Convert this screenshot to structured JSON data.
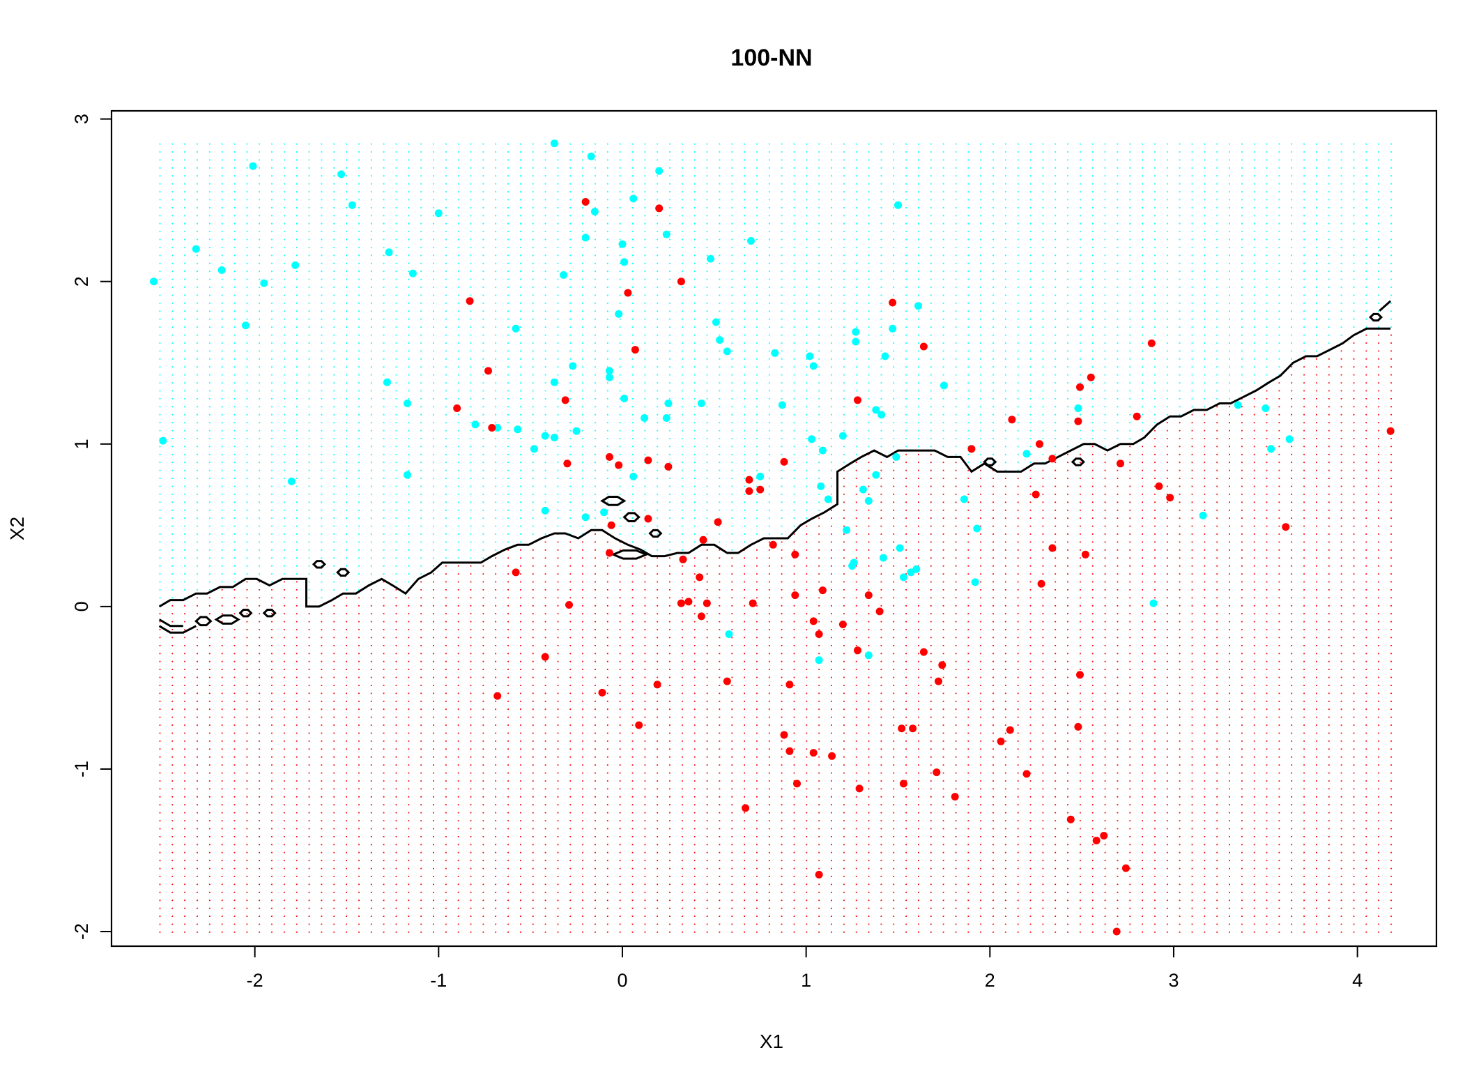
{
  "chart_data": {
    "type": "scatter",
    "title": "100-NN",
    "xlabel": "X1",
    "ylabel": "X2",
    "xlim": [
      -2.78,
      4.43
    ],
    "ylim": [
      -2.09,
      3.05
    ],
    "xticks": [
      -2,
      -1,
      0,
      1,
      2,
      3,
      4
    ],
    "yticks": [
      -2,
      -1,
      0,
      1,
      2,
      3
    ],
    "xtick_labels": [
      "-2",
      "-1",
      "0",
      "1",
      "2",
      "3",
      "4"
    ],
    "ytick_labels": [
      "-2",
      "-1",
      "0",
      "1",
      "2",
      "3"
    ],
    "colors": {
      "class_a": "#00ffff",
      "class_b": "#ff0000",
      "boundary": "#000000",
      "frame": "#000000"
    },
    "grid": {
      "x_from": -2.52,
      "x_to": 4.18,
      "y_from": -2.0,
      "y_to": 2.85,
      "n": 100,
      "marker": "small dots colored by predicted class"
    },
    "decision_boundary": [
      [
        -2.52,
        0.0
      ],
      [
        -2.46,
        0.04
      ],
      [
        -2.39,
        0.04
      ],
      [
        -2.32,
        0.08
      ],
      [
        -2.26,
        0.08
      ],
      [
        -2.19,
        0.12
      ],
      [
        -2.12,
        0.12
      ],
      [
        -2.05,
        0.17
      ],
      [
        -1.99,
        0.17
      ],
      [
        -1.92,
        0.13
      ],
      [
        -1.85,
        0.17
      ],
      [
        -1.79,
        0.17
      ],
      [
        -1.72,
        0.17
      ],
      [
        -1.72,
        0.0
      ],
      [
        -1.65,
        0.0
      ],
      [
        -1.58,
        0.04
      ],
      [
        -1.52,
        0.08
      ],
      [
        -1.45,
        0.08
      ],
      [
        -1.38,
        0.13
      ],
      [
        -1.31,
        0.17
      ],
      [
        -1.25,
        0.13
      ],
      [
        -1.18,
        0.08
      ],
      [
        -1.11,
        0.17
      ],
      [
        -1.04,
        0.21
      ],
      [
        -0.98,
        0.27
      ],
      [
        -0.91,
        0.27
      ],
      [
        -0.84,
        0.27
      ],
      [
        -0.77,
        0.27
      ],
      [
        -0.71,
        0.31
      ],
      [
        -0.64,
        0.35
      ],
      [
        -0.57,
        0.38
      ],
      [
        -0.51,
        0.38
      ],
      [
        -0.44,
        0.42
      ],
      [
        -0.37,
        0.45
      ],
      [
        -0.31,
        0.45
      ],
      [
        -0.24,
        0.42
      ],
      [
        -0.17,
        0.47
      ],
      [
        -0.11,
        0.47
      ],
      [
        -0.04,
        0.42
      ],
      [
        0.03,
        0.38
      ],
      [
        0.1,
        0.35
      ],
      [
        0.16,
        0.31
      ],
      [
        0.23,
        0.31
      ],
      [
        0.3,
        0.33
      ],
      [
        0.36,
        0.33
      ],
      [
        0.43,
        0.38
      ],
      [
        0.5,
        0.38
      ],
      [
        0.57,
        0.33
      ],
      [
        0.63,
        0.33
      ],
      [
        0.7,
        0.38
      ],
      [
        0.77,
        0.42
      ],
      [
        0.83,
        0.42
      ],
      [
        0.9,
        0.42
      ],
      [
        0.97,
        0.5
      ],
      [
        1.03,
        0.54
      ],
      [
        1.1,
        0.58
      ],
      [
        1.17,
        0.63
      ],
      [
        1.17,
        0.83
      ],
      [
        1.24,
        0.88
      ],
      [
        1.3,
        0.92
      ],
      [
        1.37,
        0.96
      ],
      [
        1.44,
        0.92
      ],
      [
        1.5,
        0.96
      ],
      [
        1.57,
        0.96
      ],
      [
        1.64,
        0.96
      ],
      [
        1.7,
        0.96
      ],
      [
        1.77,
        0.92
      ],
      [
        1.84,
        0.92
      ],
      [
        1.9,
        0.83
      ],
      [
        1.97,
        0.88
      ],
      [
        2.04,
        0.83
      ],
      [
        2.1,
        0.83
      ],
      [
        2.17,
        0.83
      ],
      [
        2.24,
        0.88
      ],
      [
        2.3,
        0.88
      ],
      [
        2.37,
        0.92
      ],
      [
        2.44,
        0.96
      ],
      [
        2.51,
        1.0
      ],
      [
        2.57,
        1.0
      ],
      [
        2.64,
        0.96
      ],
      [
        2.71,
        1.0
      ],
      [
        2.78,
        1.0
      ],
      [
        2.84,
        1.04
      ],
      [
        2.91,
        1.12
      ],
      [
        2.98,
        1.17
      ],
      [
        3.04,
        1.17
      ],
      [
        3.11,
        1.21
      ],
      [
        3.18,
        1.21
      ],
      [
        3.25,
        1.25
      ],
      [
        3.31,
        1.25
      ],
      [
        3.38,
        1.29
      ],
      [
        3.45,
        1.33
      ],
      [
        3.52,
        1.38
      ],
      [
        3.58,
        1.42
      ],
      [
        3.65,
        1.5
      ],
      [
        3.72,
        1.54
      ],
      [
        3.78,
        1.54
      ],
      [
        3.85,
        1.58
      ],
      [
        3.92,
        1.62
      ],
      [
        3.98,
        1.67
      ],
      [
        4.05,
        1.71
      ],
      [
        4.12,
        1.71
      ],
      [
        4.18,
        1.71
      ]
    ],
    "boundary_islands": [
      {
        "cx": -2.28,
        "cy": -0.09,
        "rx": 0.04,
        "ry": 0.025
      },
      {
        "cx": -2.15,
        "cy": -0.08,
        "rx": 0.06,
        "ry": 0.025
      },
      {
        "cx": -2.05,
        "cy": -0.04,
        "rx": 0.03,
        "ry": 0.02
      },
      {
        "cx": -1.92,
        "cy": -0.04,
        "rx": 0.03,
        "ry": 0.02
      },
      {
        "cx": -1.65,
        "cy": 0.26,
        "rx": 0.03,
        "ry": 0.02
      },
      {
        "cx": -1.52,
        "cy": 0.21,
        "rx": 0.03,
        "ry": 0.02
      },
      {
        "cx": -0.05,
        "cy": 0.65,
        "rx": 0.06,
        "ry": 0.025
      },
      {
        "cx": 0.05,
        "cy": 0.55,
        "rx": 0.04,
        "ry": 0.025
      },
      {
        "cx": 0.04,
        "cy": 0.32,
        "rx": 0.09,
        "ry": 0.025
      },
      {
        "cx": 0.18,
        "cy": 0.45,
        "rx": 0.03,
        "ry": 0.02
      },
      {
        "cx": 2.0,
        "cy": 0.89,
        "rx": 0.03,
        "ry": 0.02
      },
      {
        "cx": 2.48,
        "cy": 0.89,
        "rx": 0.03,
        "ry": 0.02
      },
      {
        "cx": 4.1,
        "cy": 1.78,
        "rx": 0.03,
        "ry": 0.02
      }
    ],
    "series": [
      {
        "name": "cyan class",
        "color": "#00ffff",
        "points": [
          [
            -2.55,
            2.0
          ],
          [
            -2.5,
            1.02
          ],
          [
            -2.32,
            2.2
          ],
          [
            -2.18,
            2.07
          ],
          [
            -2.05,
            1.73
          ],
          [
            -2.01,
            2.71
          ],
          [
            -1.95,
            1.99
          ],
          [
            -1.78,
            2.1
          ],
          [
            -1.8,
            0.77
          ],
          [
            -1.53,
            2.66
          ],
          [
            -1.47,
            2.47
          ],
          [
            -1.28,
            1.38
          ],
          [
            -1.27,
            2.18
          ],
          [
            -1.17,
            1.25
          ],
          [
            -1.14,
            2.05
          ],
          [
            -1.17,
            0.81
          ],
          [
            -1.0,
            2.42
          ],
          [
            -0.8,
            1.12
          ],
          [
            -0.68,
            1.1
          ],
          [
            -0.58,
            1.71
          ],
          [
            -0.57,
            1.09
          ],
          [
            -0.48,
            0.97
          ],
          [
            -0.42,
            1.05
          ],
          [
            -0.42,
            0.59
          ],
          [
            -0.37,
            2.85
          ],
          [
            -0.37,
            1.38
          ],
          [
            -0.37,
            1.04
          ],
          [
            -0.32,
            2.04
          ],
          [
            -0.27,
            1.48
          ],
          [
            -0.25,
            1.08
          ],
          [
            -0.2,
            2.27
          ],
          [
            -0.17,
            2.77
          ],
          [
            -0.15,
            2.43
          ],
          [
            -0.2,
            0.55
          ],
          [
            -0.1,
            0.58
          ],
          [
            -0.07,
            1.45
          ],
          [
            -0.07,
            1.41
          ],
          [
            -0.02,
            1.8
          ],
          [
            0.0,
            2.23
          ],
          [
            0.01,
            2.12
          ],
          [
            0.01,
            1.28
          ],
          [
            0.06,
            2.51
          ],
          [
            0.06,
            0.8
          ],
          [
            0.12,
            1.16
          ],
          [
            0.2,
            2.68
          ],
          [
            0.24,
            2.29
          ],
          [
            0.24,
            1.16
          ],
          [
            0.25,
            1.25
          ],
          [
            0.48,
            2.14
          ],
          [
            0.43,
            1.25
          ],
          [
            0.51,
            1.75
          ],
          [
            0.53,
            1.64
          ],
          [
            0.57,
            1.57
          ],
          [
            0.58,
            -0.17
          ],
          [
            0.7,
            2.25
          ],
          [
            0.75,
            0.8
          ],
          [
            0.87,
            1.24
          ],
          [
            0.83,
            1.56
          ],
          [
            1.02,
            1.54
          ],
          [
            1.04,
            1.48
          ],
          [
            1.03,
            1.03
          ],
          [
            1.08,
            0.74
          ],
          [
            1.09,
            0.96
          ],
          [
            1.12,
            0.66
          ],
          [
            1.07,
            -0.33
          ],
          [
            1.2,
            1.05
          ],
          [
            1.22,
            0.47
          ],
          [
            1.26,
            0.27
          ],
          [
            1.27,
            1.69
          ],
          [
            1.27,
            1.63
          ],
          [
            1.31,
            0.72
          ],
          [
            1.34,
            0.65
          ],
          [
            1.34,
            -0.3
          ],
          [
            1.38,
            1.21
          ],
          [
            1.38,
            0.81
          ],
          [
            1.41,
            1.18
          ],
          [
            1.42,
            0.3
          ],
          [
            1.43,
            1.54
          ],
          [
            1.47,
            1.71
          ],
          [
            1.49,
            0.92
          ],
          [
            1.5,
            2.47
          ],
          [
            1.51,
            0.36
          ],
          [
            1.53,
            0.18
          ],
          [
            1.57,
            0.21
          ],
          [
            1.6,
            0.23
          ],
          [
            1.61,
            1.85
          ],
          [
            1.75,
            1.36
          ],
          [
            1.86,
            0.66
          ],
          [
            1.92,
            0.15
          ],
          [
            1.93,
            0.48
          ],
          [
            2.2,
            0.94
          ],
          [
            2.48,
            1.22
          ],
          [
            2.89,
            0.02
          ],
          [
            3.16,
            0.56
          ],
          [
            3.5,
            1.22
          ],
          [
            3.53,
            0.97
          ],
          [
            3.63,
            1.03
          ],
          [
            3.35,
            1.24
          ],
          [
            1.25,
            0.25
          ]
        ]
      },
      {
        "name": "red class",
        "color": "#ff0000",
        "points": [
          [
            -0.83,
            1.88
          ],
          [
            -0.9,
            1.22
          ],
          [
            -0.73,
            1.45
          ],
          [
            -0.71,
            1.1
          ],
          [
            -0.68,
            -0.55
          ],
          [
            -0.58,
            0.21
          ],
          [
            -0.42,
            -0.31
          ],
          [
            -0.31,
            1.27
          ],
          [
            -0.3,
            0.88
          ],
          [
            -0.29,
            0.01
          ],
          [
            -0.2,
            2.49
          ],
          [
            -0.11,
            -0.53
          ],
          [
            -0.07,
            0.92
          ],
          [
            -0.07,
            0.33
          ],
          [
            -0.06,
            0.5
          ],
          [
            -0.02,
            0.87
          ],
          [
            0.03,
            1.93
          ],
          [
            0.07,
            1.58
          ],
          [
            0.09,
            -0.73
          ],
          [
            0.14,
            0.54
          ],
          [
            0.14,
            0.9
          ],
          [
            0.19,
            -0.48
          ],
          [
            0.2,
            2.45
          ],
          [
            0.25,
            0.86
          ],
          [
            0.32,
            2.0
          ],
          [
            0.32,
            0.02
          ],
          [
            0.33,
            0.29
          ],
          [
            0.36,
            0.03
          ],
          [
            0.42,
            0.18
          ],
          [
            0.43,
            -0.06
          ],
          [
            0.44,
            0.41
          ],
          [
            0.46,
            0.02
          ],
          [
            0.52,
            0.52
          ],
          [
            0.57,
            -0.46
          ],
          [
            0.67,
            -1.24
          ],
          [
            0.69,
            0.78
          ],
          [
            0.69,
            0.71
          ],
          [
            0.71,
            0.02
          ],
          [
            0.75,
            0.72
          ],
          [
            0.82,
            0.38
          ],
          [
            0.88,
            -0.79
          ],
          [
            0.88,
            0.89
          ],
          [
            0.91,
            -0.48
          ],
          [
            0.91,
            -0.89
          ],
          [
            0.94,
            0.32
          ],
          [
            0.95,
            -1.09
          ],
          [
            0.94,
            0.07
          ],
          [
            1.04,
            -0.09
          ],
          [
            1.04,
            -0.9
          ],
          [
            1.07,
            -0.17
          ],
          [
            1.07,
            -1.65
          ],
          [
            1.09,
            0.1
          ],
          [
            1.14,
            -0.92
          ],
          [
            1.2,
            -0.11
          ],
          [
            1.28,
            -0.27
          ],
          [
            1.28,
            1.27
          ],
          [
            1.29,
            -1.12
          ],
          [
            1.34,
            0.07
          ],
          [
            1.4,
            -0.03
          ],
          [
            1.47,
            1.87
          ],
          [
            1.52,
            -0.75
          ],
          [
            1.53,
            -1.09
          ],
          [
            1.58,
            -0.75
          ],
          [
            1.64,
            1.6
          ],
          [
            1.64,
            -0.28
          ],
          [
            1.71,
            -1.02
          ],
          [
            1.72,
            -0.46
          ],
          [
            1.74,
            -0.36
          ],
          [
            1.81,
            -1.17
          ],
          [
            1.9,
            0.97
          ],
          [
            2.06,
            -0.83
          ],
          [
            2.11,
            -0.76
          ],
          [
            2.12,
            1.15
          ],
          [
            2.2,
            -1.03
          ],
          [
            2.25,
            0.69
          ],
          [
            2.28,
            0.14
          ],
          [
            2.27,
            1.0
          ],
          [
            2.34,
            0.36
          ],
          [
            2.34,
            0.91
          ],
          [
            2.44,
            -1.31
          ],
          [
            2.49,
            1.35
          ],
          [
            2.48,
            1.14
          ],
          [
            2.48,
            -0.74
          ],
          [
            2.49,
            -0.42
          ],
          [
            2.52,
            0.32
          ],
          [
            2.55,
            1.41
          ],
          [
            2.58,
            -1.44
          ],
          [
            2.62,
            -1.41
          ],
          [
            2.69,
            -2.0
          ],
          [
            2.71,
            0.88
          ],
          [
            2.74,
            -1.61
          ],
          [
            2.8,
            1.17
          ],
          [
            2.88,
            1.62
          ],
          [
            2.92,
            0.74
          ],
          [
            2.98,
            0.67
          ],
          [
            3.61,
            0.49
          ],
          [
            4.18,
            1.08
          ]
        ]
      }
    ]
  }
}
